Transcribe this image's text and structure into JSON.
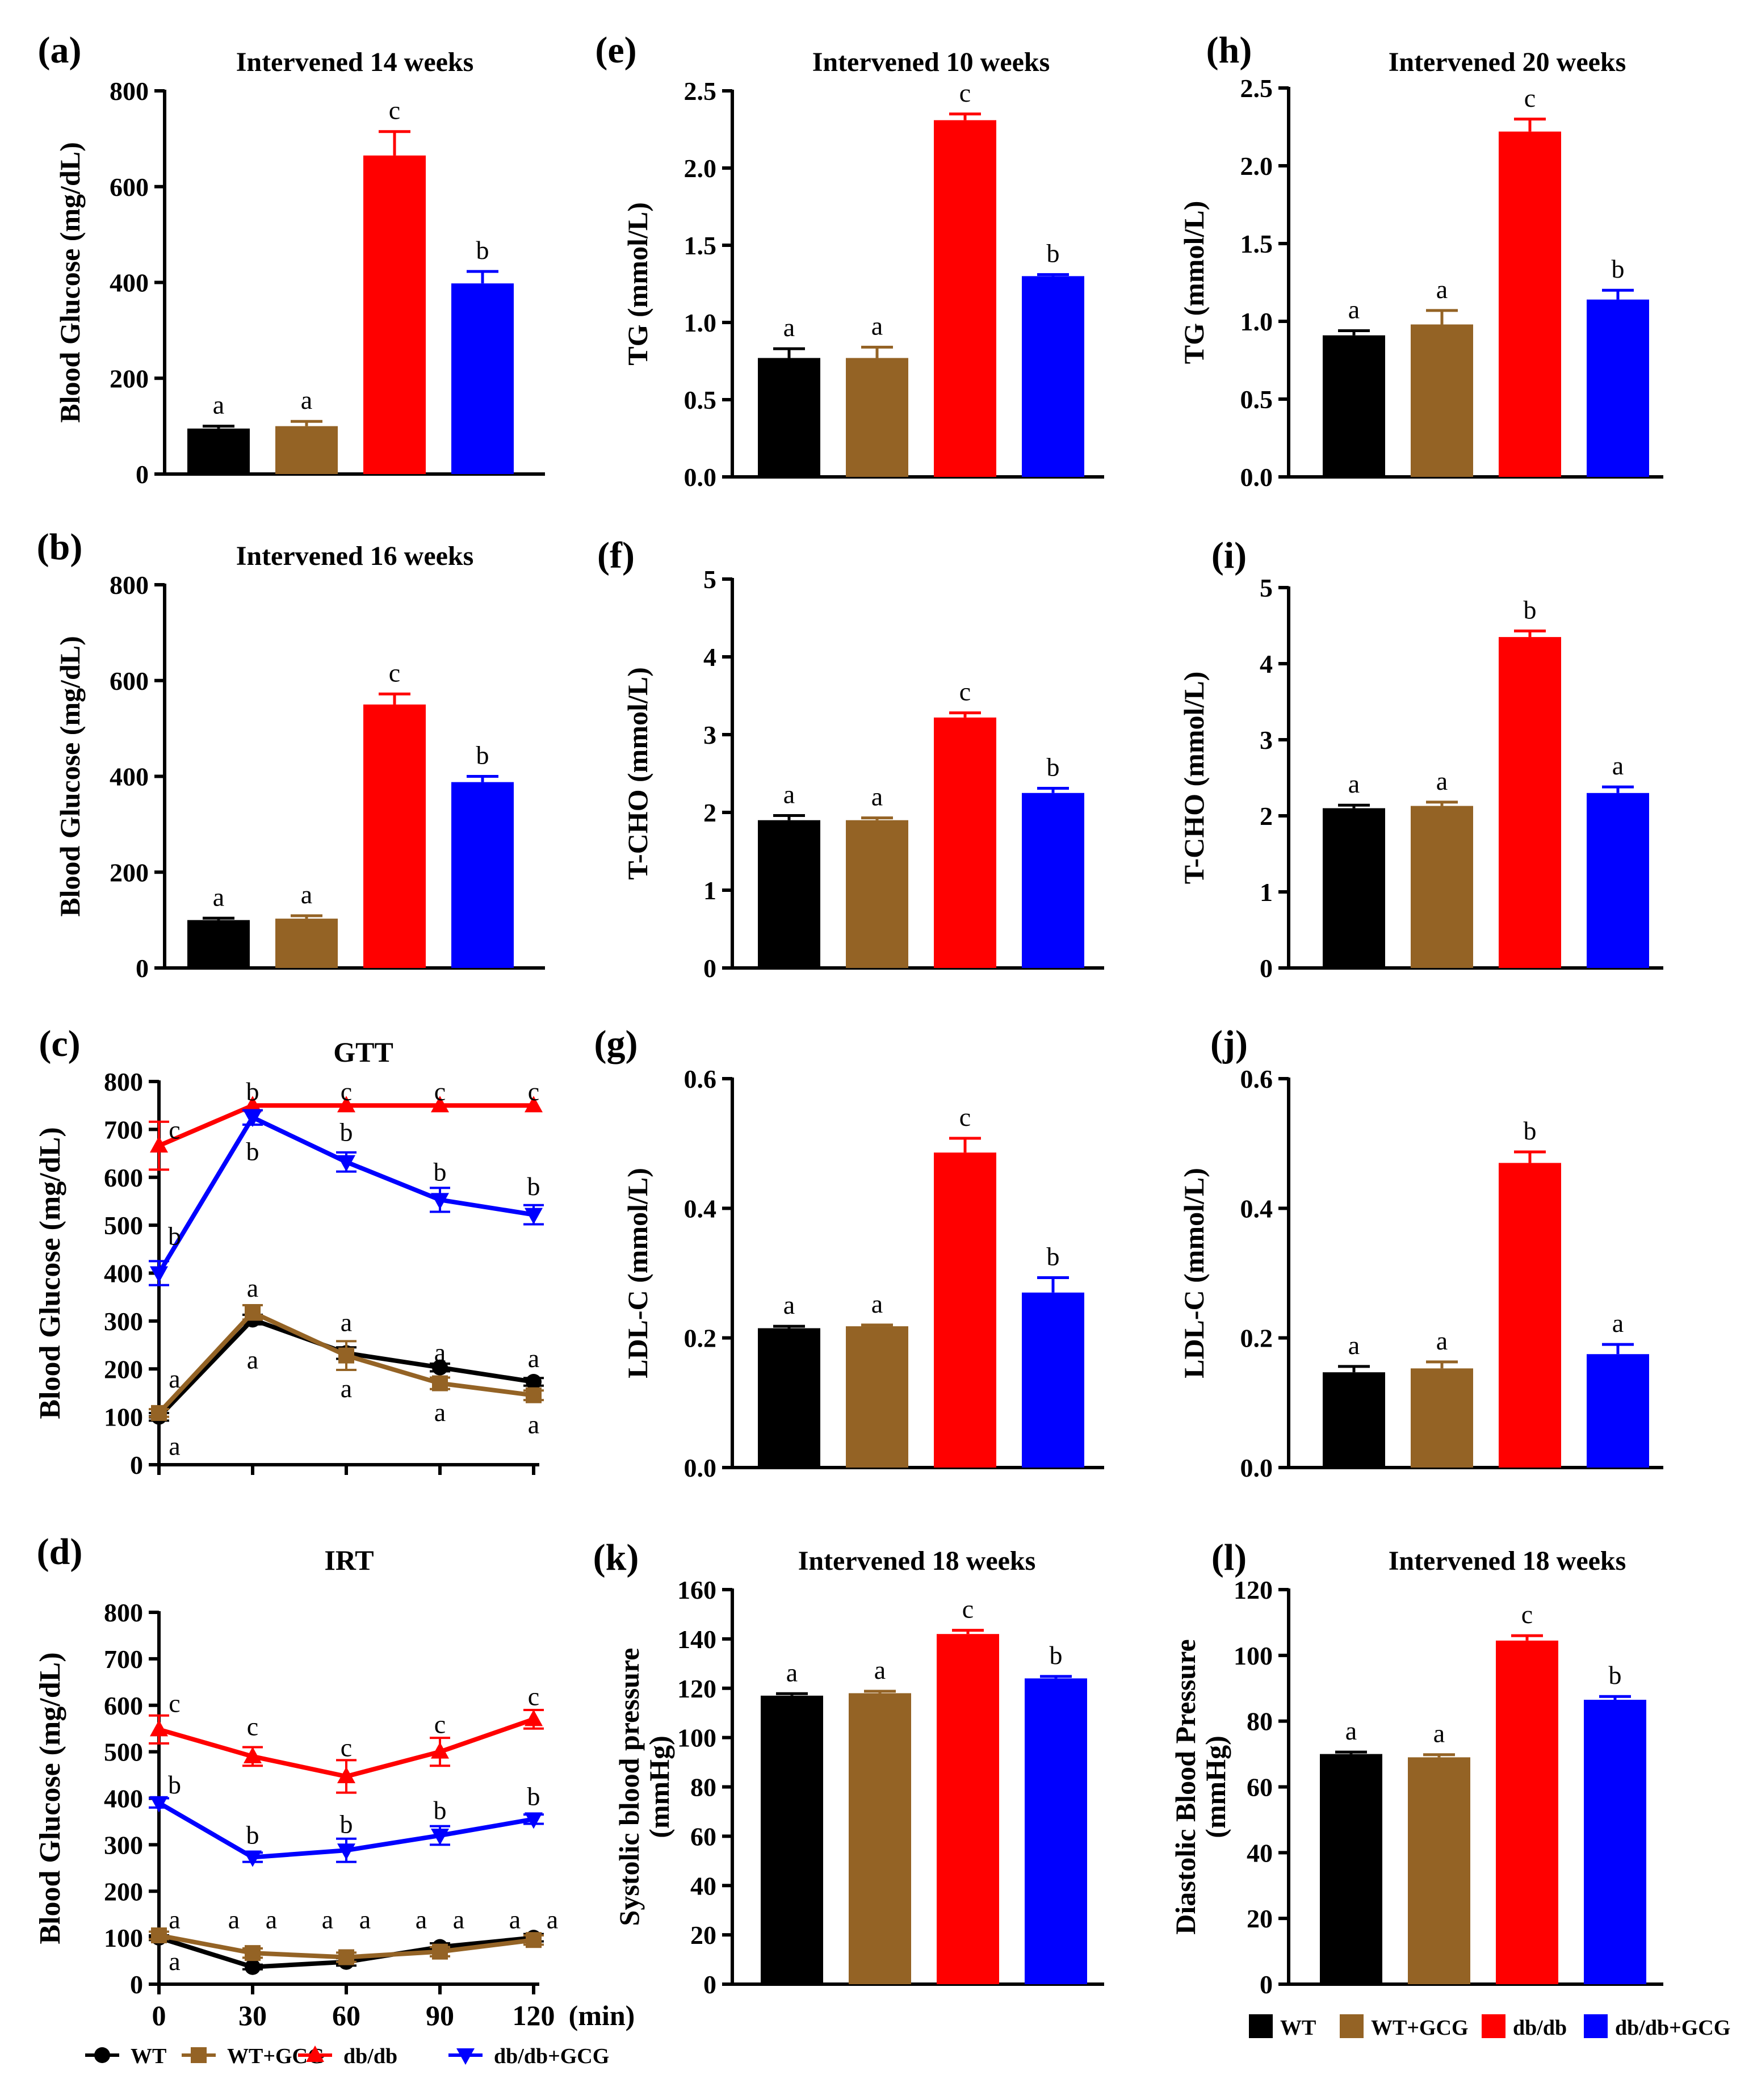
{
  "figure": {
    "legend": {
      "bar_items": [
        {
          "label": "WT",
          "color": "#000000"
        },
        {
          "label": "WT+GCG",
          "color": "#946325"
        },
        {
          "label": "db/db",
          "color": "#ff0000"
        },
        {
          "label": "db/db+GCG",
          "color": "#0000ff"
        }
      ],
      "line_items": [
        {
          "label": "WT",
          "color": "#000000",
          "marker": "circle"
        },
        {
          "label": "WT+GCG",
          "color": "#946325",
          "marker": "square"
        },
        {
          "label": "db/db",
          "color": "#ff0000",
          "marker": "triangle-up"
        },
        {
          "label": "db/db+GCG",
          "color": "#0000ff",
          "marker": "triangle-down"
        }
      ]
    },
    "group_colors": [
      "#000000",
      "#946325",
      "#ff0000",
      "#0000ff"
    ]
  },
  "chart_data": [
    {
      "id": "a",
      "panel_label": "(a)",
      "type": "bar",
      "title": "Intervened 14 weeks",
      "ylabel": "Blood Glucose (mg/dL)",
      "ylabel2": "",
      "ylim": [
        0,
        800
      ],
      "yticks": [
        "0",
        "200",
        "400",
        "600",
        "800"
      ],
      "categories": [
        "WT",
        "WT+GCG",
        "db/db",
        "db/db+GCG"
      ],
      "values": [
        95,
        100,
        665,
        398
      ],
      "errors": [
        5,
        10,
        50,
        25
      ],
      "letters": [
        "a",
        "a",
        "c",
        "b"
      ]
    },
    {
      "id": "b",
      "panel_label": "(b)",
      "type": "bar",
      "title": "Intervened 16 weeks",
      "ylabel": "Blood Glucose (mg/dL)",
      "ylabel2": "",
      "ylim": [
        0,
        800
      ],
      "yticks": [
        "0",
        "200",
        "400",
        "600",
        "800"
      ],
      "categories": [
        "WT",
        "WT+GCG",
        "db/db",
        "db/db+GCG"
      ],
      "values": [
        100,
        103,
        550,
        388
      ],
      "errors": [
        4,
        6,
        22,
        12
      ],
      "letters": [
        "a",
        "a",
        "c",
        "b"
      ]
    },
    {
      "id": "c",
      "panel_label": "(c)",
      "type": "line",
      "title": "GTT",
      "ylabel": "Blood Glucose (mg/dL)",
      "ylim": [
        0,
        800
      ],
      "yticks": [
        "0",
        "100",
        "200",
        "300",
        "400",
        "500",
        "600",
        "700",
        "800"
      ],
      "x": [
        0,
        30,
        60,
        90,
        120
      ],
      "xticks": [],
      "xunit": "",
      "series": [
        {
          "name": "WT",
          "values": [
            100,
            303,
            233,
            203,
            173
          ],
          "errors": [
            8,
            10,
            12,
            8,
            8
          ]
        },
        {
          "name": "WT+GCG",
          "values": [
            108,
            318,
            228,
            170,
            145
          ],
          "errors": [
            8,
            15,
            30,
            12,
            10
          ]
        },
        {
          "name": "db/db",
          "values": [
            666,
            750,
            750,
            750,
            750
          ],
          "errors": [
            50,
            0,
            0,
            0,
            0
          ]
        },
        {
          "name": "db/db+GCG",
          "values": [
            400,
            725,
            632,
            553,
            522
          ],
          "errors": [
            25,
            15,
            20,
            25,
            20
          ]
        }
      ],
      "annotations": [
        {
          "text": "c",
          "x": 5,
          "y": 700
        },
        {
          "text": "b",
          "x": 30,
          "y": 780
        },
        {
          "text": "c",
          "x": 60,
          "y": 780
        },
        {
          "text": "c",
          "x": 90,
          "y": 780
        },
        {
          "text": "c",
          "x": 120,
          "y": 780
        },
        {
          "text": "b",
          "x": 5,
          "y": 478
        },
        {
          "text": "b",
          "x": 30,
          "y": 655
        },
        {
          "text": "b",
          "x": 60,
          "y": 695
        },
        {
          "text": "b",
          "x": 90,
          "y": 612
        },
        {
          "text": "b",
          "x": 120,
          "y": 582
        },
        {
          "text": "a",
          "x": 5,
          "y": 180
        },
        {
          "text": "a",
          "x": 30,
          "y": 370
        },
        {
          "text": "a",
          "x": 60,
          "y": 298
        },
        {
          "text": "a",
          "x": 90,
          "y": 235
        },
        {
          "text": "a",
          "x": 120,
          "y": 223
        },
        {
          "text": "a",
          "x": 5,
          "y": 40
        },
        {
          "text": "a",
          "x": 30,
          "y": 220
        },
        {
          "text": "a",
          "x": 60,
          "y": 160
        },
        {
          "text": "a",
          "x": 90,
          "y": 110
        },
        {
          "text": "a",
          "x": 120,
          "y": 85
        }
      ]
    },
    {
      "id": "d",
      "panel_label": "(d)",
      "type": "line",
      "title": "IRT",
      "ylabel": "Blood Glucose (mg/dL)",
      "ylim": [
        0,
        800
      ],
      "yticks": [
        "0",
        "100",
        "200",
        "300",
        "400",
        "500",
        "600",
        "700",
        "800"
      ],
      "x": [
        0,
        30,
        60,
        90,
        120
      ],
      "xticks": [
        "0",
        "30",
        "60",
        "90",
        "120"
      ],
      "xunit": "(min)",
      "series": [
        {
          "name": "WT",
          "values": [
            100,
            37,
            48,
            80,
            100
          ],
          "errors": [
            5,
            5,
            8,
            8,
            8
          ]
        },
        {
          "name": "WT+GCG",
          "values": [
            105,
            67,
            58,
            70,
            95
          ],
          "errors": [
            8,
            10,
            10,
            10,
            10
          ]
        },
        {
          "name": "db/db",
          "values": [
            548,
            490,
            447,
            500,
            570
          ],
          "errors": [
            30,
            20,
            35,
            30,
            20
          ]
        },
        {
          "name": "db/db+GCG",
          "values": [
            390,
            273,
            288,
            320,
            355
          ],
          "errors": [
            10,
            10,
            25,
            20,
            10
          ]
        }
      ],
      "annotations": [
        {
          "text": "c",
          "x": 5,
          "y": 605
        },
        {
          "text": "c",
          "x": 30,
          "y": 555
        },
        {
          "text": "c",
          "x": 60,
          "y": 510
        },
        {
          "text": "c",
          "x": 90,
          "y": 560
        },
        {
          "text": "c",
          "x": 120,
          "y": 620
        },
        {
          "text": "b",
          "x": 5,
          "y": 430
        },
        {
          "text": "b",
          "x": 30,
          "y": 322
        },
        {
          "text": "b",
          "x": 60,
          "y": 345
        },
        {
          "text": "b",
          "x": 90,
          "y": 375
        },
        {
          "text": "b",
          "x": 120,
          "y": 405
        },
        {
          "text": "a",
          "x": 5,
          "y": 140
        },
        {
          "text": "a",
          "x": 24,
          "y": 140
        },
        {
          "text": "a",
          "x": 36,
          "y": 140
        },
        {
          "text": "a",
          "x": 54,
          "y": 140
        },
        {
          "text": "a",
          "x": 66,
          "y": 140
        },
        {
          "text": "a",
          "x": 84,
          "y": 140
        },
        {
          "text": "a",
          "x": 96,
          "y": 140
        },
        {
          "text": "a",
          "x": 114,
          "y": 140
        },
        {
          "text": "a",
          "x": 126,
          "y": 140
        },
        {
          "text": "a",
          "x": 5,
          "y": 50
        }
      ]
    },
    {
      "id": "e",
      "panel_label": "(e)",
      "type": "bar",
      "title": "Intervened 10 weeks",
      "ylabel": "TG (mmol/L)",
      "ylabel2": "",
      "ylim": [
        0,
        2.5
      ],
      "yticks": [
        "0.0",
        "0.5",
        "1.0",
        "1.5",
        "2.0",
        "2.5"
      ],
      "categories": [
        "WT",
        "WT+GCG",
        "db/db",
        "db/db+GCG"
      ],
      "values": [
        0.77,
        0.77,
        2.31,
        1.3
      ],
      "errors": [
        0.06,
        0.07,
        0.04,
        0.01
      ],
      "letters": [
        "a",
        "a",
        "c",
        "b"
      ]
    },
    {
      "id": "f",
      "panel_label": "(f)",
      "type": "bar",
      "title": "",
      "ylabel": "T-CHO (mmol/L)",
      "ylabel2": "",
      "ylim": [
        0,
        5
      ],
      "yticks": [
        "0",
        "1",
        "2",
        "3",
        "4",
        "5"
      ],
      "categories": [
        "WT",
        "WT+GCG",
        "db/db",
        "db/db+GCG"
      ],
      "values": [
        1.9,
        1.9,
        3.22,
        2.25
      ],
      "errors": [
        0.06,
        0.03,
        0.06,
        0.06
      ],
      "letters": [
        "a",
        "a",
        "c",
        "b"
      ]
    },
    {
      "id": "g",
      "panel_label": "(g)",
      "type": "bar",
      "title": "",
      "ylabel": "LDL-C (mmol/L)",
      "ylabel2": "",
      "ylim": [
        0,
        0.6
      ],
      "yticks": [
        "0.0",
        "0.2",
        "0.4",
        "0.6"
      ],
      "categories": [
        "WT",
        "WT+GCG",
        "db/db",
        "db/db+GCG"
      ],
      "values": [
        0.215,
        0.218,
        0.486,
        0.27
      ],
      "errors": [
        0.003,
        0.002,
        0.022,
        0.023
      ],
      "letters": [
        "a",
        "a",
        "c",
        "b"
      ]
    },
    {
      "id": "h",
      "panel_label": "(h)",
      "type": "bar",
      "title": "Intervened 20 weeks",
      "ylabel": "TG (mmol/L)",
      "ylabel2": "",
      "ylim": [
        0,
        2.5
      ],
      "yticks": [
        "0.0",
        "0.5",
        "1.0",
        "1.5",
        "2.0",
        "2.5"
      ],
      "categories": [
        "WT",
        "WT+GCG",
        "db/db",
        "db/db+GCG"
      ],
      "values": [
        0.91,
        0.98,
        2.22,
        1.14
      ],
      "errors": [
        0.03,
        0.09,
        0.08,
        0.06
      ],
      "letters": [
        "a",
        "a",
        "c",
        "b"
      ]
    },
    {
      "id": "i",
      "panel_label": "(i)",
      "type": "bar",
      "title": "",
      "ylabel": "T-CHO (mmol/L)",
      "ylabel2": "",
      "ylim": [
        0,
        5
      ],
      "yticks": [
        "0",
        "1",
        "2",
        "3",
        "4",
        "5"
      ],
      "categories": [
        "WT",
        "WT+GCG",
        "db/db",
        "db/db+GCG"
      ],
      "values": [
        2.1,
        2.13,
        4.35,
        2.3
      ],
      "errors": [
        0.04,
        0.05,
        0.08,
        0.08
      ],
      "letters": [
        "a",
        "a",
        "b",
        "a"
      ]
    },
    {
      "id": "j",
      "panel_label": "(j)",
      "type": "bar",
      "title": "",
      "ylabel": "LDL-C (mmol/L)",
      "ylabel2": "",
      "ylim": [
        0,
        0.6
      ],
      "yticks": [
        "0.0",
        "0.2",
        "0.4",
        "0.6"
      ],
      "categories": [
        "WT",
        "WT+GCG",
        "db/db",
        "db/db+GCG"
      ],
      "values": [
        0.147,
        0.153,
        0.47,
        0.175
      ],
      "errors": [
        0.009,
        0.01,
        0.017,
        0.015
      ],
      "letters": [
        "a",
        "a",
        "b",
        "a"
      ]
    },
    {
      "id": "k",
      "panel_label": "(k)",
      "type": "bar",
      "title": "Intervened 18 weeks",
      "ylabel": "Systolic blood pressure",
      "ylabel2": "(mmHg)",
      "ylim": [
        0,
        160
      ],
      "yticks": [
        "0",
        "20",
        "40",
        "60",
        "80",
        "100",
        "120",
        "140",
        "160"
      ],
      "categories": [
        "WT",
        "WT+GCG",
        "db/db",
        "db/db+GCG"
      ],
      "values": [
        117,
        118,
        142,
        124
      ],
      "errors": [
        0.8,
        0.8,
        1.5,
        0.8
      ],
      "letters": [
        "a",
        "a",
        "c",
        "b"
      ]
    },
    {
      "id": "l",
      "panel_label": "(l)",
      "type": "bar",
      "title": "Intervened 18 weeks",
      "ylabel": "Diastolic Blood Pressure",
      "ylabel2": "(mmHg)",
      "ylim": [
        0,
        120
      ],
      "yticks": [
        "0",
        "20",
        "40",
        "60",
        "80",
        "100",
        "120"
      ],
      "categories": [
        "WT",
        "WT+GCG",
        "db/db",
        "db/db+GCG"
      ],
      "values": [
        70,
        69,
        104.5,
        86.5
      ],
      "errors": [
        0.6,
        0.8,
        1.5,
        1
      ],
      "letters": [
        "a",
        "a",
        "c",
        "b"
      ]
    }
  ]
}
